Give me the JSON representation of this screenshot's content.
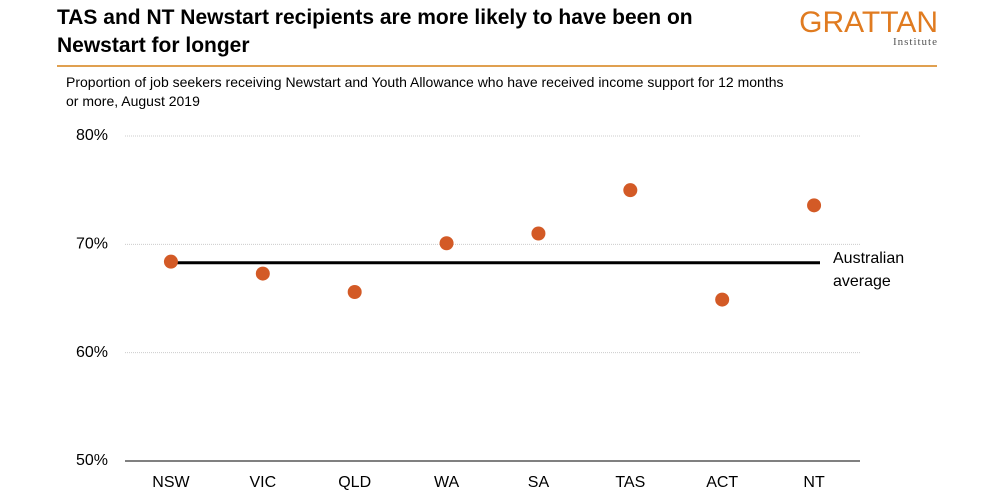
{
  "logo": {
    "name": "GRATTAN",
    "sub": "Institute"
  },
  "chart_data": {
    "type": "scatter",
    "title": "TAS and NT Newstart recipients are more likely to have been on Newstart for longer",
    "subtitle": "Proportion of job seekers receiving Newstart and Youth Allowance who have received income support for 12 months or more, August 2019",
    "categories": [
      "NSW",
      "VIC",
      "QLD",
      "WA",
      "SA",
      "TAS",
      "ACT",
      "NT"
    ],
    "values": [
      68.4,
      67.3,
      65.6,
      70.1,
      71.0,
      75.0,
      64.9,
      73.6
    ],
    "color": "#d35a26",
    "ylim": [
      50,
      80
    ],
    "yticks": [
      {
        "value": 50,
        "label": "50%"
      },
      {
        "value": 60,
        "label": "60%"
      },
      {
        "value": 70,
        "label": "70%"
      },
      {
        "value": 80,
        "label": "80%"
      }
    ],
    "grid": true,
    "reference_line": {
      "value": 68.3,
      "label": "Australian average",
      "color": "#000000"
    }
  }
}
